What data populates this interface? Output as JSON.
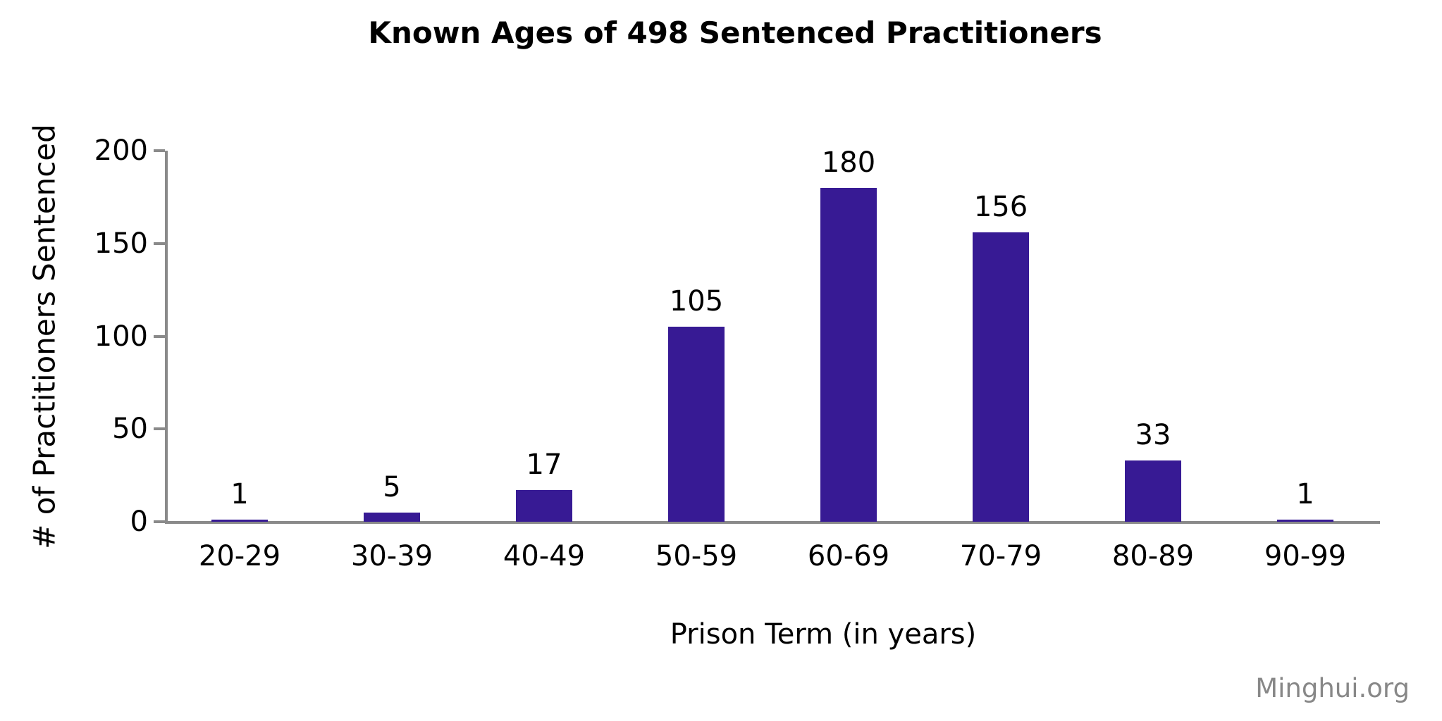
{
  "chart_data": {
    "type": "bar",
    "title": "Known Ages of 498 Sentenced Practitioners",
    "xlabel": "Prison Term (in years)",
    "ylabel": "# of Practitioners Sentenced",
    "categories": [
      "20-29",
      "30-39",
      "40-49",
      "50-59",
      "60-69",
      "70-79",
      "80-89",
      "90-99"
    ],
    "values": [
      1,
      5,
      17,
      105,
      180,
      156,
      33,
      1
    ],
    "ylim": [
      0,
      200
    ],
    "yticks": [
      0,
      50,
      100,
      150,
      200
    ],
    "grid": false,
    "legend": "none",
    "data_labels_shown": true,
    "colors": {
      "bar": "#371A94",
      "axis": "#8A8A8A",
      "text": "#000000"
    }
  },
  "watermark": {
    "label": "Minghui.org",
    "color": "#888888"
  }
}
